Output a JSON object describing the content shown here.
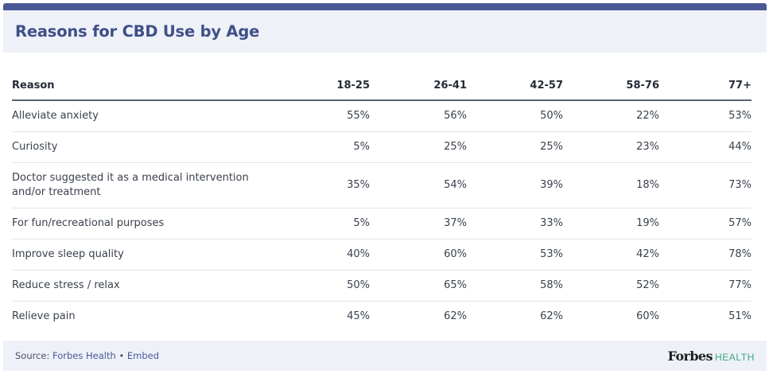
{
  "header": {
    "title": "Reasons for CBD Use by Age"
  },
  "table": {
    "columns": [
      "Reason",
      "18-25",
      "26-41",
      "42-57",
      "58-76",
      "77+"
    ],
    "rows": [
      {
        "reason": "Alleviate anxiety",
        "values": [
          "55%",
          "56%",
          "50%",
          "22%",
          "53%"
        ]
      },
      {
        "reason": "Curiosity",
        "values": [
          "5%",
          "25%",
          "25%",
          "23%",
          "44%"
        ]
      },
      {
        "reason": "Doctor suggested it as a medical intervention and/or treatment",
        "values": [
          "35%",
          "54%",
          "39%",
          "18%",
          "73%"
        ]
      },
      {
        "reason": "For fun/recreational purposes",
        "values": [
          "5%",
          "37%",
          "33%",
          "19%",
          "57%"
        ]
      },
      {
        "reason": "Improve sleep quality",
        "values": [
          "40%",
          "60%",
          "53%",
          "42%",
          "78%"
        ]
      },
      {
        "reason": "Reduce stress / relax",
        "values": [
          "50%",
          "65%",
          "58%",
          "52%",
          "77%"
        ]
      },
      {
        "reason": "Relieve pain",
        "values": [
          "45%",
          "62%",
          "62%",
          "60%",
          "51%"
        ]
      }
    ]
  },
  "footer": {
    "source_label": "Source:",
    "source_link": "Forbes Health",
    "separator": "•",
    "embed_link": "Embed",
    "brand_name": "Forbes",
    "brand_sub": "HEALTH"
  },
  "colors": {
    "accent": "#4a5896",
    "title": "#3f4f86",
    "header_bg": "#eef1f8",
    "brand_health": "#3ea77f"
  }
}
